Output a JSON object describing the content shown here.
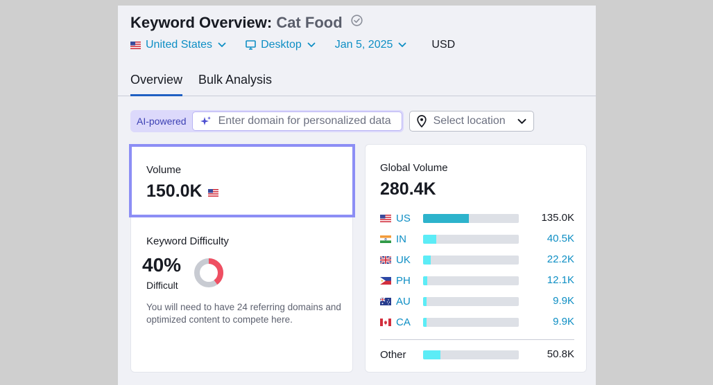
{
  "header": {
    "title_prefix": "Keyword Overview:",
    "keyword": "Cat Food"
  },
  "filters": {
    "country": "United States",
    "device": "Desktop",
    "date": "Jan 5, 2025",
    "currency": "USD"
  },
  "tabs": [
    {
      "label": "Overview",
      "active": true
    },
    {
      "label": "Bulk Analysis",
      "active": false
    }
  ],
  "ai": {
    "badge": "AI-powered",
    "domain_placeholder": "Enter domain for personalized data",
    "location_placeholder": "Select location"
  },
  "volume": {
    "label": "Volume",
    "value": "150.0K"
  },
  "keyword_difficulty": {
    "label": "Keyword Difficulty",
    "percent_text": "40%",
    "percent": 40,
    "level": "Difficult",
    "description": "You will need to have 24 referring domains and optimized content to compete here."
  },
  "global_volume": {
    "label": "Global Volume",
    "value": "280.4K",
    "rows": [
      {
        "code": "US",
        "value": "135.0K",
        "share": 0.48,
        "color": "#2db3cc",
        "linked": false
      },
      {
        "code": "IN",
        "value": "40.5K",
        "share": 0.14,
        "color": "#5cecf6",
        "linked": true
      },
      {
        "code": "UK",
        "value": "22.2K",
        "share": 0.08,
        "color": "#5cecf6",
        "linked": true
      },
      {
        "code": "PH",
        "value": "12.1K",
        "share": 0.04,
        "color": "#5cecf6",
        "linked": true
      },
      {
        "code": "AU",
        "value": "9.9K",
        "share": 0.035,
        "color": "#5cecf6",
        "linked": true
      },
      {
        "code": "CA",
        "value": "9.9K",
        "share": 0.035,
        "color": "#5cecf6",
        "linked": true
      }
    ],
    "other": {
      "label": "Other",
      "value": "50.8K",
      "share": 0.18,
      "color": "#5cecf6"
    }
  },
  "colors": {
    "accent": "#0d8ec4",
    "tab_underline": "#1f5fc2",
    "highlight_border": "#8c8ef5",
    "difficulty_red": "#ef4f62"
  }
}
